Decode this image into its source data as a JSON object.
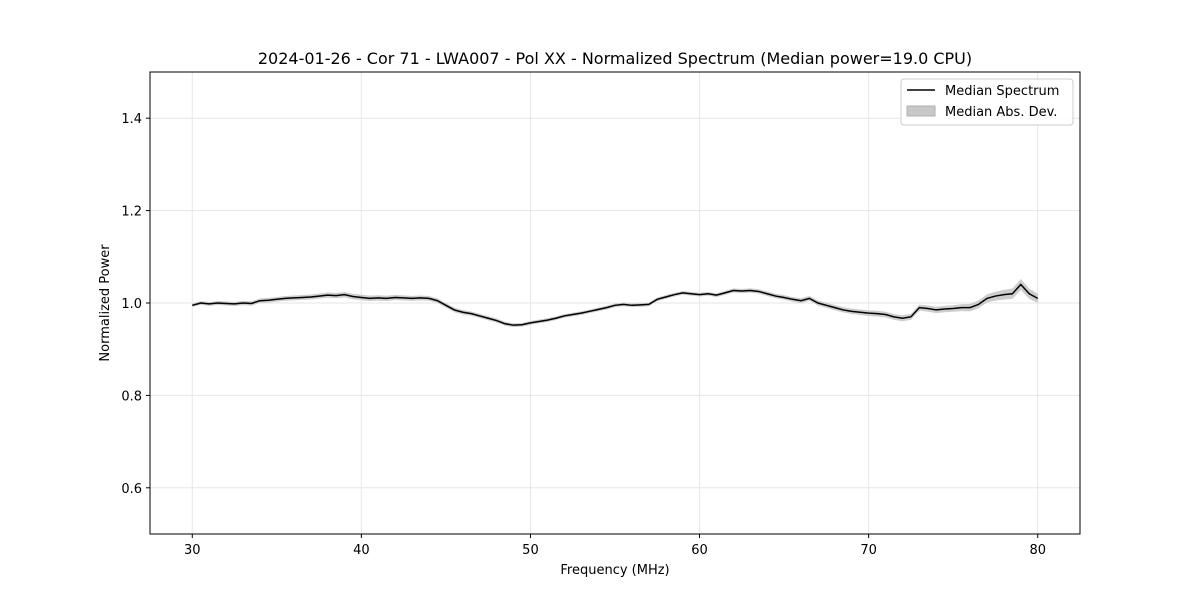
{
  "chart_data": {
    "type": "line",
    "title": "2024-01-26 - Cor 71 - LWA007 - Pol XX - Normalized Spectrum (Median power=19.0 CPU)",
    "xlabel": "Frequency (MHz)",
    "ylabel": "Normalized Power",
    "xlim": [
      27.5,
      82.5
    ],
    "ylim": [
      0.5,
      1.5
    ],
    "xticks": [
      30,
      40,
      50,
      60,
      70,
      80
    ],
    "xtick_labels": [
      "30",
      "40",
      "50",
      "60",
      "70",
      "80"
    ],
    "yticks": [
      0.6,
      0.8,
      1.0,
      1.2,
      1.4
    ],
    "ytick_labels": [
      "0.6",
      "0.8",
      "1.0",
      "1.2",
      "1.4"
    ],
    "grid": true,
    "legend": {
      "position": "top-right",
      "entries": [
        "Median Spectrum",
        "Median Abs. Dev."
      ]
    },
    "series": [
      {
        "name": "Median Spectrum",
        "kind": "line",
        "color": "#000000",
        "x": [
          30,
          30.5,
          31,
          31.5,
          32,
          32.5,
          33,
          33.5,
          34,
          34.5,
          35,
          35.5,
          36,
          36.5,
          37,
          37.5,
          38,
          38.5,
          39,
          39.5,
          40,
          40.5,
          41,
          41.5,
          42,
          42.5,
          43,
          43.5,
          44,
          44.5,
          45,
          45.5,
          46,
          46.5,
          47,
          47.5,
          48,
          48.5,
          49,
          49.5,
          50,
          50.5,
          51,
          51.5,
          52,
          52.5,
          53,
          53.5,
          54,
          54.5,
          55,
          55.5,
          56,
          56.5,
          57,
          57.5,
          58,
          58.5,
          59,
          59.5,
          60,
          60.5,
          61,
          61.5,
          62,
          62.5,
          63,
          63.5,
          64,
          64.5,
          65,
          65.5,
          66,
          66.5,
          67,
          67.5,
          68,
          68.5,
          69,
          69.5,
          70,
          70.5,
          71,
          71.5,
          72,
          72.5,
          73,
          73.5,
          74,
          74.5,
          75,
          75.5,
          76,
          76.5,
          77,
          77.5,
          78,
          78.5,
          79,
          79.5,
          80
        ],
        "y": [
          0.995,
          1.0,
          0.998,
          1.0,
          0.999,
          0.998,
          1.0,
          0.999,
          1.005,
          1.006,
          1.008,
          1.01,
          1.011,
          1.012,
          1.013,
          1.015,
          1.017,
          1.016,
          1.018,
          1.014,
          1.012,
          1.01,
          1.011,
          1.01,
          1.012,
          1.011,
          1.01,
          1.011,
          1.01,
          1.005,
          0.995,
          0.985,
          0.98,
          0.977,
          0.972,
          0.967,
          0.962,
          0.955,
          0.952,
          0.953,
          0.957,
          0.96,
          0.963,
          0.967,
          0.972,
          0.975,
          0.978,
          0.982,
          0.986,
          0.99,
          0.995,
          0.997,
          0.995,
          0.996,
          0.997,
          1.008,
          1.013,
          1.018,
          1.022,
          1.02,
          1.018,
          1.02,
          1.017,
          1.022,
          1.027,
          1.026,
          1.027,
          1.025,
          1.02,
          1.015,
          1.012,
          1.008,
          1.005,
          1.01,
          1.0,
          0.995,
          0.99,
          0.985,
          0.982,
          0.98,
          0.978,
          0.977,
          0.975,
          0.97,
          0.967,
          0.97,
          0.99,
          0.988,
          0.985,
          0.987,
          0.988,
          0.99,
          0.99,
          0.997,
          1.01,
          1.015,
          1.018,
          1.02,
          1.04,
          1.02,
          1.01
        ]
      },
      {
        "name": "Median Abs. Dev.",
        "kind": "band",
        "color": "#c8c8c8",
        "x": [
          30,
          35,
          40,
          45,
          50,
          55,
          60,
          65,
          70,
          75,
          77,
          79,
          80
        ],
        "halfwidth": [
          0.004,
          0.005,
          0.006,
          0.005,
          0.004,
          0.004,
          0.004,
          0.005,
          0.006,
          0.007,
          0.009,
          0.012,
          0.01
        ]
      }
    ]
  }
}
